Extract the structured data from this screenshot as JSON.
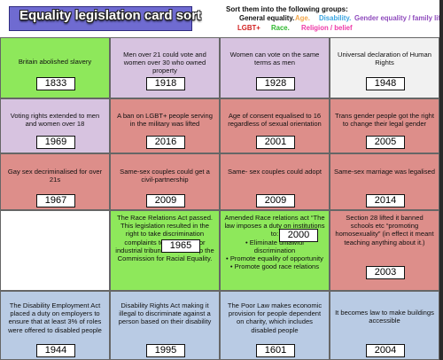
{
  "title": "Equality legislation card sort",
  "instructions": "Sort them into the following groups:",
  "legend": [
    {
      "label": "General equality.",
      "color": "#111111"
    },
    {
      "label": "Age.",
      "color": "#f2a64a"
    },
    {
      "label": "Disability.",
      "color": "#3aa4e0"
    },
    {
      "label": "Gender equality / family life",
      "color": "#8f4bbd"
    },
    {
      "label": "LGBT+",
      "color": "#d21f1f"
    },
    {
      "label": "Race.",
      "color": "#2eb82e"
    },
    {
      "label": "Religion / belief",
      "color": "#ee3aa8"
    }
  ],
  "cards": [
    {
      "text": "Britain abolished slavery",
      "year": "1833"
    },
    {
      "text": "Men over 21 could vote and women over 30 who owned property",
      "year": "1918"
    },
    {
      "text": "Women can vote on the same terms as men",
      "year": "1928"
    },
    {
      "text": "Universal declaration of Human Rights",
      "year": "1948"
    },
    {
      "text": "Voting rights extended to men and women over 18",
      "year": "1969"
    },
    {
      "text": "A ban on LGBT+ people serving in the military was lifted",
      "year": "2016"
    },
    {
      "text": "Age of consent equalised to 16 regardless of sexual orientation",
      "year": "2001"
    },
    {
      "text": "Trans gender people got the right to change their legal gender",
      "year": "2005"
    },
    {
      "text": "Gay sex decriminalised for over 21s",
      "year": "1967"
    },
    {
      "text": "Same-sex couples could get a civil-partnership",
      "year": "2009"
    },
    {
      "text": "Same- sex couples could adopt",
      "year": "2009"
    },
    {
      "text": "Same-sex marriage was legalised",
      "year": "2014"
    },
    {
      "text": "",
      "year": ""
    },
    {
      "text": "The Race Relations Act passed. This legislation resulted in the right to take discrimination complaints to civil courts or industrial tribunals and set up the Commission for Racial Equality.",
      "year": "1965"
    },
    {
      "text": "Amended Race relations act “The law imposes a duty on institutions to:",
      "bullets": [
        "• Eliminate unlawful discrimination",
        "• Promote equality of opportunity",
        "• Promote good race relations"
      ],
      "year": "2000"
    },
    {
      "text": "Section 28 lifted it banned schools etc “promoting homosexuality” (in effect it meant teaching anything about it.)",
      "year": "2003"
    },
    {
      "text": "The Disability Employment Act placed a duty on employers to ensure that at least 3% of roles were offered to disabled people",
      "year": "1944"
    },
    {
      "text": "Disability Rights Act making it illegal to discriminate against a person based on their disability",
      "year": "1995"
    },
    {
      "text": "The Poor Law makes economic provision for people dependent on charity, which includes disabled people",
      "year": "1601"
    },
    {
      "text": "It becomes law to make buildings accessible",
      "year": "2004"
    }
  ]
}
